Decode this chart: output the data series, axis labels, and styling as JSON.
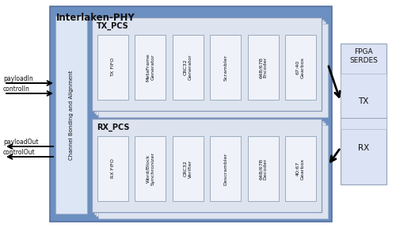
{
  "title": "Interlaken-PHY",
  "bg_outer": "#6b8fc0",
  "bg_channel": "#dce6f5",
  "bg_pcs": "#dde4f0",
  "bg_block": "#f0f2fa",
  "bg_fpga": "#dce3f5",
  "text_dark": "#111111",
  "tx_pcs_blocks": [
    "TX FIFO",
    "MetaFrame\nGenerator",
    "CRC32\nGenerator",
    "Scrambler",
    "64B/67B\nEncoder",
    "67:40\nGearbox"
  ],
  "rx_pcs_blocks": [
    "RX FIFO",
    "Word/Block\nSynchronizer",
    "CRC32\nVerifier",
    "Descrambler",
    "64B/67B\nDecoder",
    "40:67\nGearbox"
  ],
  "left_labels_top": [
    "payloadIn",
    "controlIn"
  ],
  "left_labels_bot": [
    "payloadOut",
    "controlOut"
  ],
  "fpga_label": "FPGA\nSERDES",
  "tx_label": "TX",
  "rx_label": "RX",
  "channel_label": "Channel Bonding and Alignment",
  "tx_pcs_label": "TX_PCS",
  "rx_pcs_label": "RX_PCS"
}
